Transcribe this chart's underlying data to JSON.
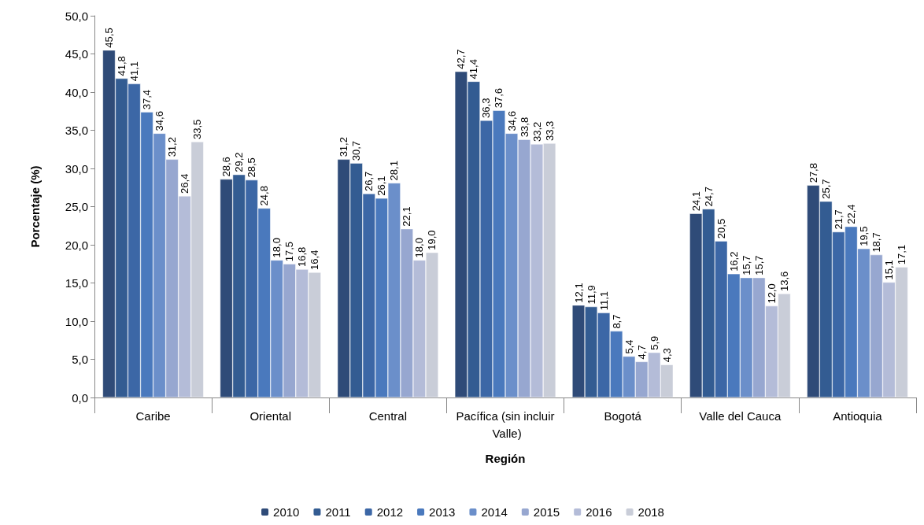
{
  "chart_data": {
    "type": "bar",
    "xlabel": "Región",
    "ylabel": "Porcentaje (%)",
    "categories": [
      "Caribe",
      "Oriental",
      "Central",
      "Pacífica (sin incluir Valle)",
      "Bogotá",
      "Valle del Cauca",
      "Antioquia"
    ],
    "ylim": [
      0,
      50
    ],
    "yticks": [
      {
        "value": 0,
        "label": "0,0"
      },
      {
        "value": 5,
        "label": "5,0"
      },
      {
        "value": 10,
        "label": "10,0"
      },
      {
        "value": 15,
        "label": "15,0"
      },
      {
        "value": 20,
        "label": "20,0"
      },
      {
        "value": 25,
        "label": "25,0"
      },
      {
        "value": 30,
        "label": "30,0"
      },
      {
        "value": 35,
        "label": "35,0"
      },
      {
        "value": 40,
        "label": "40,0"
      },
      {
        "value": 45,
        "label": "45,0"
      },
      {
        "value": 50,
        "label": "50,0"
      }
    ],
    "grid": false,
    "legend": "bottom",
    "series": [
      {
        "name": "2010",
        "color": "#2f4b78",
        "values": [
          45.5,
          28.6,
          31.2,
          42.7,
          12.1,
          24.1,
          27.8
        ],
        "value_labels": [
          "45,5",
          "28,6",
          "31,2",
          "42,7",
          "12,1",
          "24,1",
          "27,8"
        ]
      },
      {
        "name": "2011",
        "color": "#335c92",
        "values": [
          41.8,
          29.2,
          30.7,
          41.4,
          11.9,
          24.7,
          25.7
        ],
        "value_labels": [
          "41,8",
          "29,2",
          "30,7",
          "41,4",
          "11,9",
          "24,7",
          "25,7"
        ]
      },
      {
        "name": "2012",
        "color": "#3c67a6",
        "values": [
          41.1,
          28.5,
          26.7,
          36.3,
          11.1,
          20.5,
          21.7
        ],
        "value_labels": [
          "41,1",
          "28,5",
          "26,7",
          "36,3",
          "11,1",
          "20,5",
          "21,7"
        ]
      },
      {
        "name": "2013",
        "color": "#4a79bd",
        "values": [
          37.4,
          24.8,
          26.1,
          37.6,
          8.7,
          16.2,
          22.4
        ],
        "value_labels": [
          "37,4",
          "24,8",
          "26,1",
          "37,6",
          "8,7",
          "16,2",
          "22,4"
        ]
      },
      {
        "name": "2014",
        "color": "#6b8fca",
        "values": [
          34.6,
          18.0,
          28.1,
          34.6,
          5.4,
          15.7,
          19.5
        ],
        "value_labels": [
          "34,6",
          "18,0",
          "28,1",
          "34,6",
          "5,4",
          "15,7",
          "19,5"
        ]
      },
      {
        "name": "2015",
        "color": "#97a7d0",
        "values": [
          31.2,
          17.5,
          22.1,
          33.8,
          4.7,
          15.7,
          18.7
        ],
        "value_labels": [
          "31,2",
          "17,5",
          "22,1",
          "33,8",
          "4,7",
          "15,7",
          "18,7"
        ]
      },
      {
        "name": "2016",
        "color": "#b4bcd8",
        "values": [
          26.4,
          16.8,
          18.0,
          33.2,
          5.9,
          12.0,
          15.1
        ],
        "value_labels": [
          "26,4",
          "16,8",
          "18,0",
          "33,2",
          "5,9",
          "12,0",
          "15,1"
        ]
      },
      {
        "name": "2018",
        "color": "#c9cdd8",
        "values": [
          33.5,
          16.4,
          19.0,
          33.3,
          4.3,
          13.6,
          17.1
        ],
        "value_labels": [
          "33,5",
          "16,4",
          "19,0",
          "33,3",
          "4,3",
          "13,6",
          "17,1"
        ]
      }
    ]
  }
}
